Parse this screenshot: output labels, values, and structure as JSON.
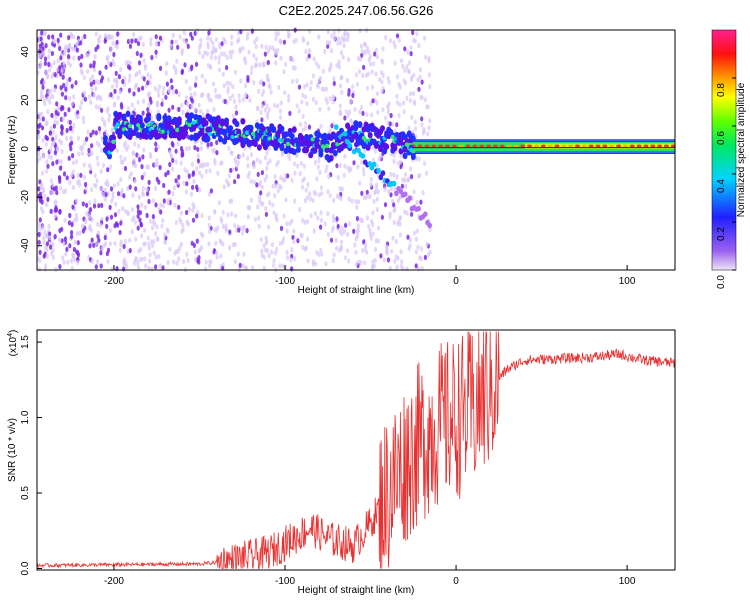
{
  "title": "C2E2.2025.247.06.56.G26",
  "chart_data": [
    {
      "type": "heatmap",
      "name": "spectrogram",
      "xlabel": "Height of straight line (km)",
      "ylabel": "Frequency (Hz)",
      "xlim": [
        -245,
        128
      ],
      "ylim": [
        -50,
        49
      ],
      "xticks": [
        -200,
        -100,
        0,
        100
      ],
      "yticks": [
        -40,
        -20,
        0,
        20,
        40
      ],
      "signal_track": [
        {
          "x": -200,
          "y": 10
        },
        {
          "x": -150,
          "y": 9
        },
        {
          "x": -130,
          "y": 7
        },
        {
          "x": -110,
          "y": 5
        },
        {
          "x": -90,
          "y": 3
        },
        {
          "x": -75,
          "y": 0
        },
        {
          "x": -60,
          "y": 6
        },
        {
          "x": -45,
          "y": 4
        },
        {
          "x": -35,
          "y": 2
        },
        {
          "x": -20,
          "y": 1
        },
        {
          "x": 0,
          "y": 1
        },
        {
          "x": 50,
          "y": 1
        },
        {
          "x": 100,
          "y": 1
        },
        {
          "x": 128,
          "y": 1
        }
      ],
      "colorbar": {
        "label": "Normalized spectral amplitude",
        "range": [
          0,
          1
        ],
        "ticks": [
          "0.0",
          "0.2",
          "0.4",
          "0.6",
          "0.8"
        ]
      }
    },
    {
      "type": "line",
      "name": "snr",
      "xlabel": "Height of straight line (km)",
      "ylabel": "SNR (10 * v/v)",
      "scale_label": "(x10",
      "scale_exponent": "4",
      "xlim": [
        -245,
        128
      ],
      "ylim": [
        -0.01,
        1.58
      ],
      "xticks": [
        -200,
        -100,
        0,
        100
      ],
      "yticks": [
        "0.0",
        "0.5",
        "1.0",
        "1.5"
      ],
      "color": "#e83030",
      "series": [
        {
          "x": -245,
          "y": 0.02
        },
        {
          "x": -200,
          "y": 0.025
        },
        {
          "x": -150,
          "y": 0.03
        },
        {
          "x": -130,
          "y": 0.05
        },
        {
          "x": -110,
          "y": 0.1
        },
        {
          "x": -95,
          "y": 0.2
        },
        {
          "x": -85,
          "y": 0.27
        },
        {
          "x": -75,
          "y": 0.2
        },
        {
          "x": -60,
          "y": 0.15
        },
        {
          "x": -50,
          "y": 0.3
        },
        {
          "x": -40,
          "y": 0.5
        },
        {
          "x": -30,
          "y": 0.7
        },
        {
          "x": -20,
          "y": 0.85
        },
        {
          "x": -10,
          "y": 0.95
        },
        {
          "x": 0,
          "y": 1.0
        },
        {
          "x": 10,
          "y": 1.05
        },
        {
          "x": 20,
          "y": 1.2
        },
        {
          "x": 30,
          "y": 1.32
        },
        {
          "x": 40,
          "y": 1.38
        },
        {
          "x": 60,
          "y": 1.39
        },
        {
          "x": 80,
          "y": 1.4
        },
        {
          "x": 95,
          "y": 1.42
        },
        {
          "x": 110,
          "y": 1.38
        },
        {
          "x": 128,
          "y": 1.36
        }
      ]
    }
  ]
}
